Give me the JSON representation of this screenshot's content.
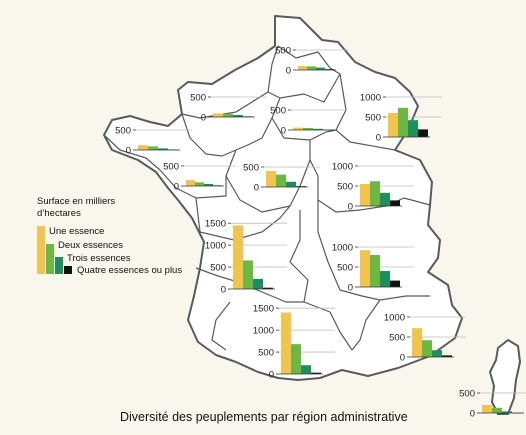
{
  "caption": "Diversité des peuplements par région administrative",
  "legend": {
    "title_line1": "Surface en milliers",
    "title_line2": "d’hectares",
    "items": [
      {
        "label": "Une essence",
        "color": "#f2c44c"
      },
      {
        "label": "Deux essences",
        "color": "#6bb845"
      },
      {
        "label": "Trois essences",
        "color": "#1f8e5e"
      },
      {
        "label": "Quatre essences ou plus",
        "color": "#111111"
      }
    ]
  },
  "map_colors": {
    "background": "#f9f6ee",
    "land": "#ffffff",
    "border": "#5a5a5a"
  },
  "chart_data": [
    {
      "type": "bar",
      "region_index": 1,
      "categories": [
        "Une essence",
        "Deux essences",
        "Trois essences",
        "Quatre essences ou plus"
      ],
      "values": [
        100,
        90,
        60,
        20
      ],
      "yticks": [
        0,
        500
      ],
      "ylim": [
        0,
        600
      ]
    },
    {
      "type": "bar",
      "region_index": 2,
      "categories": [
        "Une essence",
        "Deux essences",
        "Trois essences",
        "Quatre essences ou plus"
      ],
      "values": [
        90,
        80,
        50,
        15
      ],
      "yticks": [
        0,
        500
      ],
      "ylim": [
        0,
        600
      ]
    },
    {
      "type": "bar",
      "region_index": 3,
      "categories": [
        "Une essence",
        "Deux essences",
        "Trois essences",
        "Quatre essences ou plus"
      ],
      "values": [
        60,
        50,
        30,
        5
      ],
      "yticks": [
        0,
        500
      ],
      "ylim": [
        0,
        600
      ]
    },
    {
      "type": "bar",
      "region_index": 4,
      "categories": [
        "Une essence",
        "Deux essences",
        "Trois essences",
        "Quatre essences ou plus"
      ],
      "values": [
        600,
        730,
        420,
        190
      ],
      "yticks": [
        0,
        500,
        1000
      ],
      "ylim": [
        0,
        1050
      ]
    },
    {
      "type": "bar",
      "region_index": 5,
      "categories": [
        "Une essence",
        "Deux essences",
        "Trois essences",
        "Quatre essences ou plus"
      ],
      "values": [
        120,
        90,
        40,
        10
      ],
      "yticks": [
        0,
        500
      ],
      "ylim": [
        0,
        600
      ]
    },
    {
      "type": "bar",
      "region_index": 6,
      "categories": [
        "Une essence",
        "Deux essences",
        "Trois essences",
        "Quatre essences ou plus"
      ],
      "values": [
        150,
        90,
        50,
        15
      ],
      "yticks": [
        0,
        500
      ],
      "ylim": [
        0,
        600
      ]
    },
    {
      "type": "bar",
      "region_index": 7,
      "categories": [
        "Une essence",
        "Deux essences",
        "Trois essences",
        "Quatre essences ou plus"
      ],
      "values": [
        400,
        310,
        130,
        20
      ],
      "yticks": [
        0,
        500
      ],
      "ylim": [
        0,
        600
      ]
    },
    {
      "type": "bar",
      "region_index": 8,
      "categories": [
        "Une essence",
        "Deux essences",
        "Trois essences",
        "Quatre essences ou plus"
      ],
      "values": [
        550,
        620,
        330,
        140
      ],
      "yticks": [
        0,
        500,
        1000
      ],
      "ylim": [
        0,
        1050
      ]
    },
    {
      "type": "bar",
      "region_index": 9,
      "categories": [
        "Une essence",
        "Deux essences",
        "Trois essences",
        "Quatre essences ou plus"
      ],
      "values": [
        1450,
        650,
        230,
        30
      ],
      "yticks": [
        0,
        500,
        1000,
        1500
      ],
      "ylim": [
        0,
        1550
      ]
    },
    {
      "type": "bar",
      "region_index": 10,
      "categories": [
        "Une essence",
        "Deux essences",
        "Trois essences",
        "Quatre essences ou plus"
      ],
      "values": [
        920,
        800,
        400,
        160
      ],
      "yticks": [
        0,
        500,
        1000
      ],
      "ylim": [
        0,
        1050
      ]
    },
    {
      "type": "bar",
      "region_index": 11,
      "categories": [
        "Une essence",
        "Deux essences",
        "Trois essences",
        "Quatre essences ou plus"
      ],
      "values": [
        1400,
        680,
        200,
        30
      ],
      "yticks": [
        0,
        500,
        1000,
        1500
      ],
      "ylim": [
        0,
        1550
      ]
    },
    {
      "type": "bar",
      "region_index": 12,
      "categories": [
        "Une essence",
        "Deux essences",
        "Trois essences",
        "Quatre essences ou plus"
      ],
      "values": [
        720,
        420,
        170,
        40
      ],
      "yticks": [
        0,
        500,
        1000
      ],
      "ylim": [
        0,
        1050
      ]
    },
    {
      "type": "bar",
      "region_index": 13,
      "categories": [
        "Une essence",
        "Deux essences",
        "Trois essences",
        "Quatre essences ou plus"
      ],
      "values": [
        200,
        130,
        40,
        5
      ],
      "yticks": [
        0,
        500
      ],
      "ylim": [
        0,
        600
      ]
    }
  ]
}
